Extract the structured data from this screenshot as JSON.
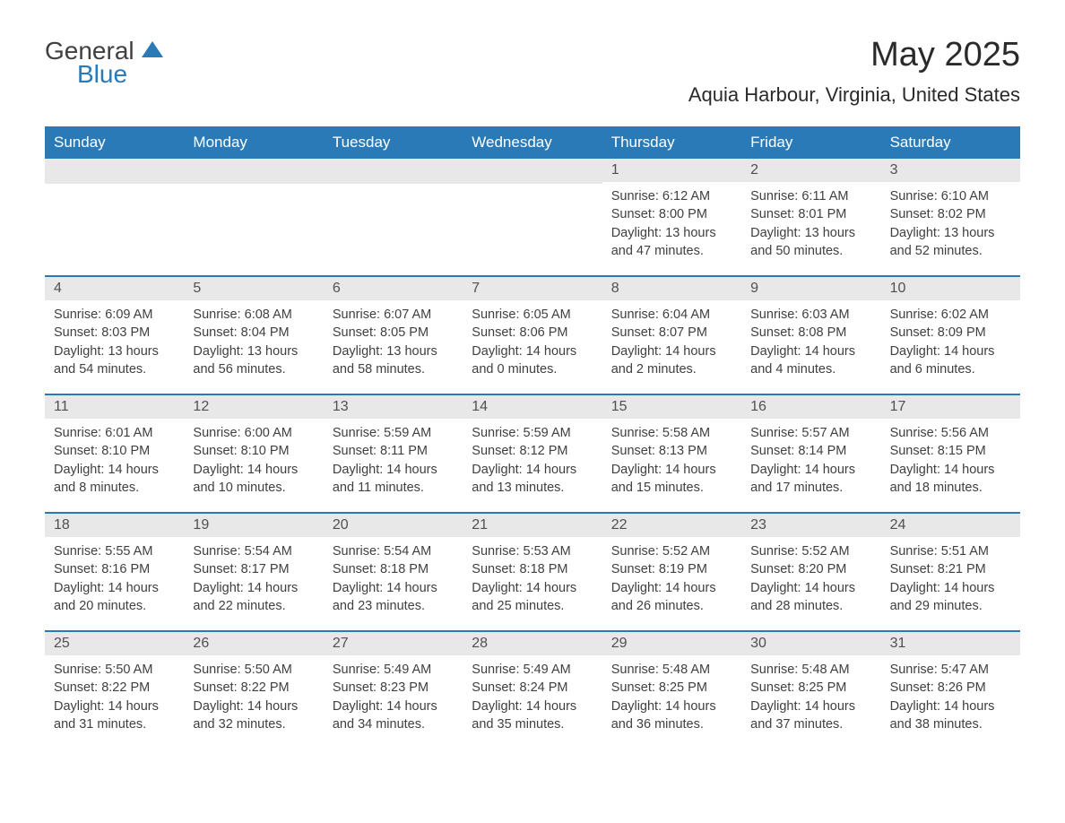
{
  "logo": {
    "text_general": "General",
    "text_blue": "Blue"
  },
  "title": "May 2025",
  "location": "Aquia Harbour, Virginia, United States",
  "day_headers": [
    "Sunday",
    "Monday",
    "Tuesday",
    "Wednesday",
    "Thursday",
    "Friday",
    "Saturday"
  ],
  "colors": {
    "header_bg": "#2a7ab8",
    "header_text": "#ffffff",
    "day_num_bg": "#e8e8e8",
    "text": "#404040",
    "border": "#2a7ab8"
  },
  "weeks": [
    [
      {
        "day": "",
        "empty": true
      },
      {
        "day": "",
        "empty": true
      },
      {
        "day": "",
        "empty": true
      },
      {
        "day": "",
        "empty": true
      },
      {
        "day": "1",
        "sunrise": "Sunrise: 6:12 AM",
        "sunset": "Sunset: 8:00 PM",
        "daylight1": "Daylight: 13 hours",
        "daylight2": "and 47 minutes."
      },
      {
        "day": "2",
        "sunrise": "Sunrise: 6:11 AM",
        "sunset": "Sunset: 8:01 PM",
        "daylight1": "Daylight: 13 hours",
        "daylight2": "and 50 minutes."
      },
      {
        "day": "3",
        "sunrise": "Sunrise: 6:10 AM",
        "sunset": "Sunset: 8:02 PM",
        "daylight1": "Daylight: 13 hours",
        "daylight2": "and 52 minutes."
      }
    ],
    [
      {
        "day": "4",
        "sunrise": "Sunrise: 6:09 AM",
        "sunset": "Sunset: 8:03 PM",
        "daylight1": "Daylight: 13 hours",
        "daylight2": "and 54 minutes."
      },
      {
        "day": "5",
        "sunrise": "Sunrise: 6:08 AM",
        "sunset": "Sunset: 8:04 PM",
        "daylight1": "Daylight: 13 hours",
        "daylight2": "and 56 minutes."
      },
      {
        "day": "6",
        "sunrise": "Sunrise: 6:07 AM",
        "sunset": "Sunset: 8:05 PM",
        "daylight1": "Daylight: 13 hours",
        "daylight2": "and 58 minutes."
      },
      {
        "day": "7",
        "sunrise": "Sunrise: 6:05 AM",
        "sunset": "Sunset: 8:06 PM",
        "daylight1": "Daylight: 14 hours",
        "daylight2": "and 0 minutes."
      },
      {
        "day": "8",
        "sunrise": "Sunrise: 6:04 AM",
        "sunset": "Sunset: 8:07 PM",
        "daylight1": "Daylight: 14 hours",
        "daylight2": "and 2 minutes."
      },
      {
        "day": "9",
        "sunrise": "Sunrise: 6:03 AM",
        "sunset": "Sunset: 8:08 PM",
        "daylight1": "Daylight: 14 hours",
        "daylight2": "and 4 minutes."
      },
      {
        "day": "10",
        "sunrise": "Sunrise: 6:02 AM",
        "sunset": "Sunset: 8:09 PM",
        "daylight1": "Daylight: 14 hours",
        "daylight2": "and 6 minutes."
      }
    ],
    [
      {
        "day": "11",
        "sunrise": "Sunrise: 6:01 AM",
        "sunset": "Sunset: 8:10 PM",
        "daylight1": "Daylight: 14 hours",
        "daylight2": "and 8 minutes."
      },
      {
        "day": "12",
        "sunrise": "Sunrise: 6:00 AM",
        "sunset": "Sunset: 8:10 PM",
        "daylight1": "Daylight: 14 hours",
        "daylight2": "and 10 minutes."
      },
      {
        "day": "13",
        "sunrise": "Sunrise: 5:59 AM",
        "sunset": "Sunset: 8:11 PM",
        "daylight1": "Daylight: 14 hours",
        "daylight2": "and 11 minutes."
      },
      {
        "day": "14",
        "sunrise": "Sunrise: 5:59 AM",
        "sunset": "Sunset: 8:12 PM",
        "daylight1": "Daylight: 14 hours",
        "daylight2": "and 13 minutes."
      },
      {
        "day": "15",
        "sunrise": "Sunrise: 5:58 AM",
        "sunset": "Sunset: 8:13 PM",
        "daylight1": "Daylight: 14 hours",
        "daylight2": "and 15 minutes."
      },
      {
        "day": "16",
        "sunrise": "Sunrise: 5:57 AM",
        "sunset": "Sunset: 8:14 PM",
        "daylight1": "Daylight: 14 hours",
        "daylight2": "and 17 minutes."
      },
      {
        "day": "17",
        "sunrise": "Sunrise: 5:56 AM",
        "sunset": "Sunset: 8:15 PM",
        "daylight1": "Daylight: 14 hours",
        "daylight2": "and 18 minutes."
      }
    ],
    [
      {
        "day": "18",
        "sunrise": "Sunrise: 5:55 AM",
        "sunset": "Sunset: 8:16 PM",
        "daylight1": "Daylight: 14 hours",
        "daylight2": "and 20 minutes."
      },
      {
        "day": "19",
        "sunrise": "Sunrise: 5:54 AM",
        "sunset": "Sunset: 8:17 PM",
        "daylight1": "Daylight: 14 hours",
        "daylight2": "and 22 minutes."
      },
      {
        "day": "20",
        "sunrise": "Sunrise: 5:54 AM",
        "sunset": "Sunset: 8:18 PM",
        "daylight1": "Daylight: 14 hours",
        "daylight2": "and 23 minutes."
      },
      {
        "day": "21",
        "sunrise": "Sunrise: 5:53 AM",
        "sunset": "Sunset: 8:18 PM",
        "daylight1": "Daylight: 14 hours",
        "daylight2": "and 25 minutes."
      },
      {
        "day": "22",
        "sunrise": "Sunrise: 5:52 AM",
        "sunset": "Sunset: 8:19 PM",
        "daylight1": "Daylight: 14 hours",
        "daylight2": "and 26 minutes."
      },
      {
        "day": "23",
        "sunrise": "Sunrise: 5:52 AM",
        "sunset": "Sunset: 8:20 PM",
        "daylight1": "Daylight: 14 hours",
        "daylight2": "and 28 minutes."
      },
      {
        "day": "24",
        "sunrise": "Sunrise: 5:51 AM",
        "sunset": "Sunset: 8:21 PM",
        "daylight1": "Daylight: 14 hours",
        "daylight2": "and 29 minutes."
      }
    ],
    [
      {
        "day": "25",
        "sunrise": "Sunrise: 5:50 AM",
        "sunset": "Sunset: 8:22 PM",
        "daylight1": "Daylight: 14 hours",
        "daylight2": "and 31 minutes."
      },
      {
        "day": "26",
        "sunrise": "Sunrise: 5:50 AM",
        "sunset": "Sunset: 8:22 PM",
        "daylight1": "Daylight: 14 hours",
        "daylight2": "and 32 minutes."
      },
      {
        "day": "27",
        "sunrise": "Sunrise: 5:49 AM",
        "sunset": "Sunset: 8:23 PM",
        "daylight1": "Daylight: 14 hours",
        "daylight2": "and 34 minutes."
      },
      {
        "day": "28",
        "sunrise": "Sunrise: 5:49 AM",
        "sunset": "Sunset: 8:24 PM",
        "daylight1": "Daylight: 14 hours",
        "daylight2": "and 35 minutes."
      },
      {
        "day": "29",
        "sunrise": "Sunrise: 5:48 AM",
        "sunset": "Sunset: 8:25 PM",
        "daylight1": "Daylight: 14 hours",
        "daylight2": "and 36 minutes."
      },
      {
        "day": "30",
        "sunrise": "Sunrise: 5:48 AM",
        "sunset": "Sunset: 8:25 PM",
        "daylight1": "Daylight: 14 hours",
        "daylight2": "and 37 minutes."
      },
      {
        "day": "31",
        "sunrise": "Sunrise: 5:47 AM",
        "sunset": "Sunset: 8:26 PM",
        "daylight1": "Daylight: 14 hours",
        "daylight2": "and 38 minutes."
      }
    ]
  ]
}
